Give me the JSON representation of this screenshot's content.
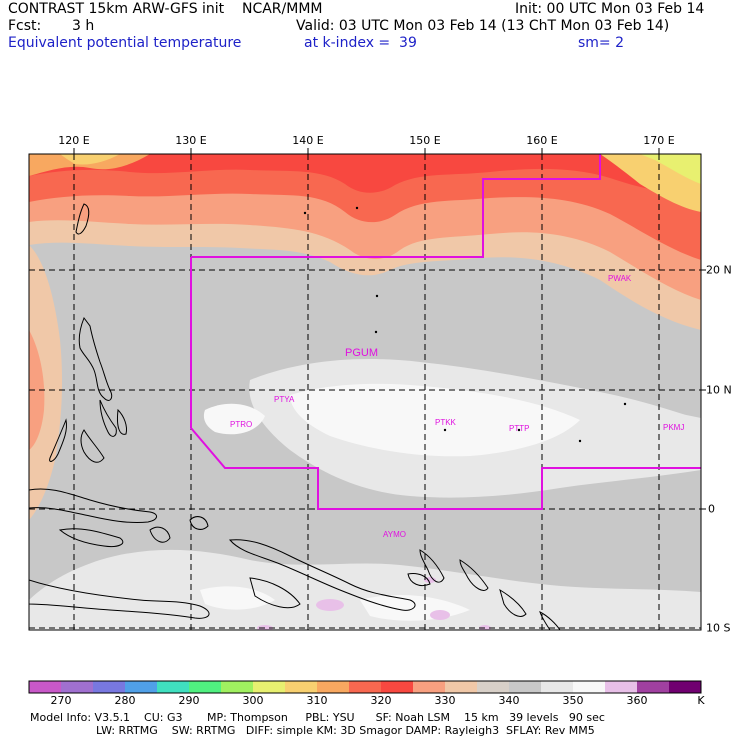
{
  "header": {
    "title": "CONTRAST 15km ARW-GFS init    NCAR/MMM",
    "init": "Init: 00 UTC Mon 03 Feb 14",
    "fcst_label": "Fcst:",
    "fcst_value": "3 h",
    "valid": "Valid: 03 UTC Mon 03 Feb 14 (13 ChT Mon 03 Feb 14)",
    "field": "Equivalent potential temperature",
    "level": "at k-index =  39",
    "smooth": "sm= 2"
  },
  "map": {
    "lon_labels": [
      "120 E",
      "130 E",
      "140 E",
      "150 E",
      "160 E",
      "170 E"
    ],
    "lat_labels": [
      "20 N",
      "10 N",
      "0",
      "10 S"
    ],
    "stations": [
      "PGUM",
      "PTYA",
      "PTRO",
      "PTKK",
      "PTTP",
      "PKMJ",
      "PWAK",
      "AYMO"
    ]
  },
  "colorbar": {
    "labels": [
      "270",
      "280",
      "290",
      "300",
      "310",
      "320",
      "330",
      "340",
      "350",
      "360",
      "K"
    ],
    "colors": [
      "#c858c8",
      "#a070d0",
      "#7878e0",
      "#50a0e8",
      "#40e0c0",
      "#50f080",
      "#a0f060",
      "#e8f070",
      "#f8d070",
      "#f8a860",
      "#f86850",
      "#f84840",
      "#f8a080",
      "#f0c8a8",
      "#d8d0c8",
      "#c8c8c8",
      "#e8e8e8",
      "#f8f8f8",
      "#e8c0e8",
      "#a040a0",
      "#700070"
    ]
  },
  "footer": {
    "line1": "Model Info: V3.5.1    CU: G3       MP: Thompson     PBL: YSU      SF: Noah LSM    15 km   39 levels   90 sec",
    "line2": "LW: RRTMG    SW: RRTMG   DIFF: simple KM: 3D Smagor DAMP: Rayleigh3  SFLAY: Rev MM5"
  }
}
